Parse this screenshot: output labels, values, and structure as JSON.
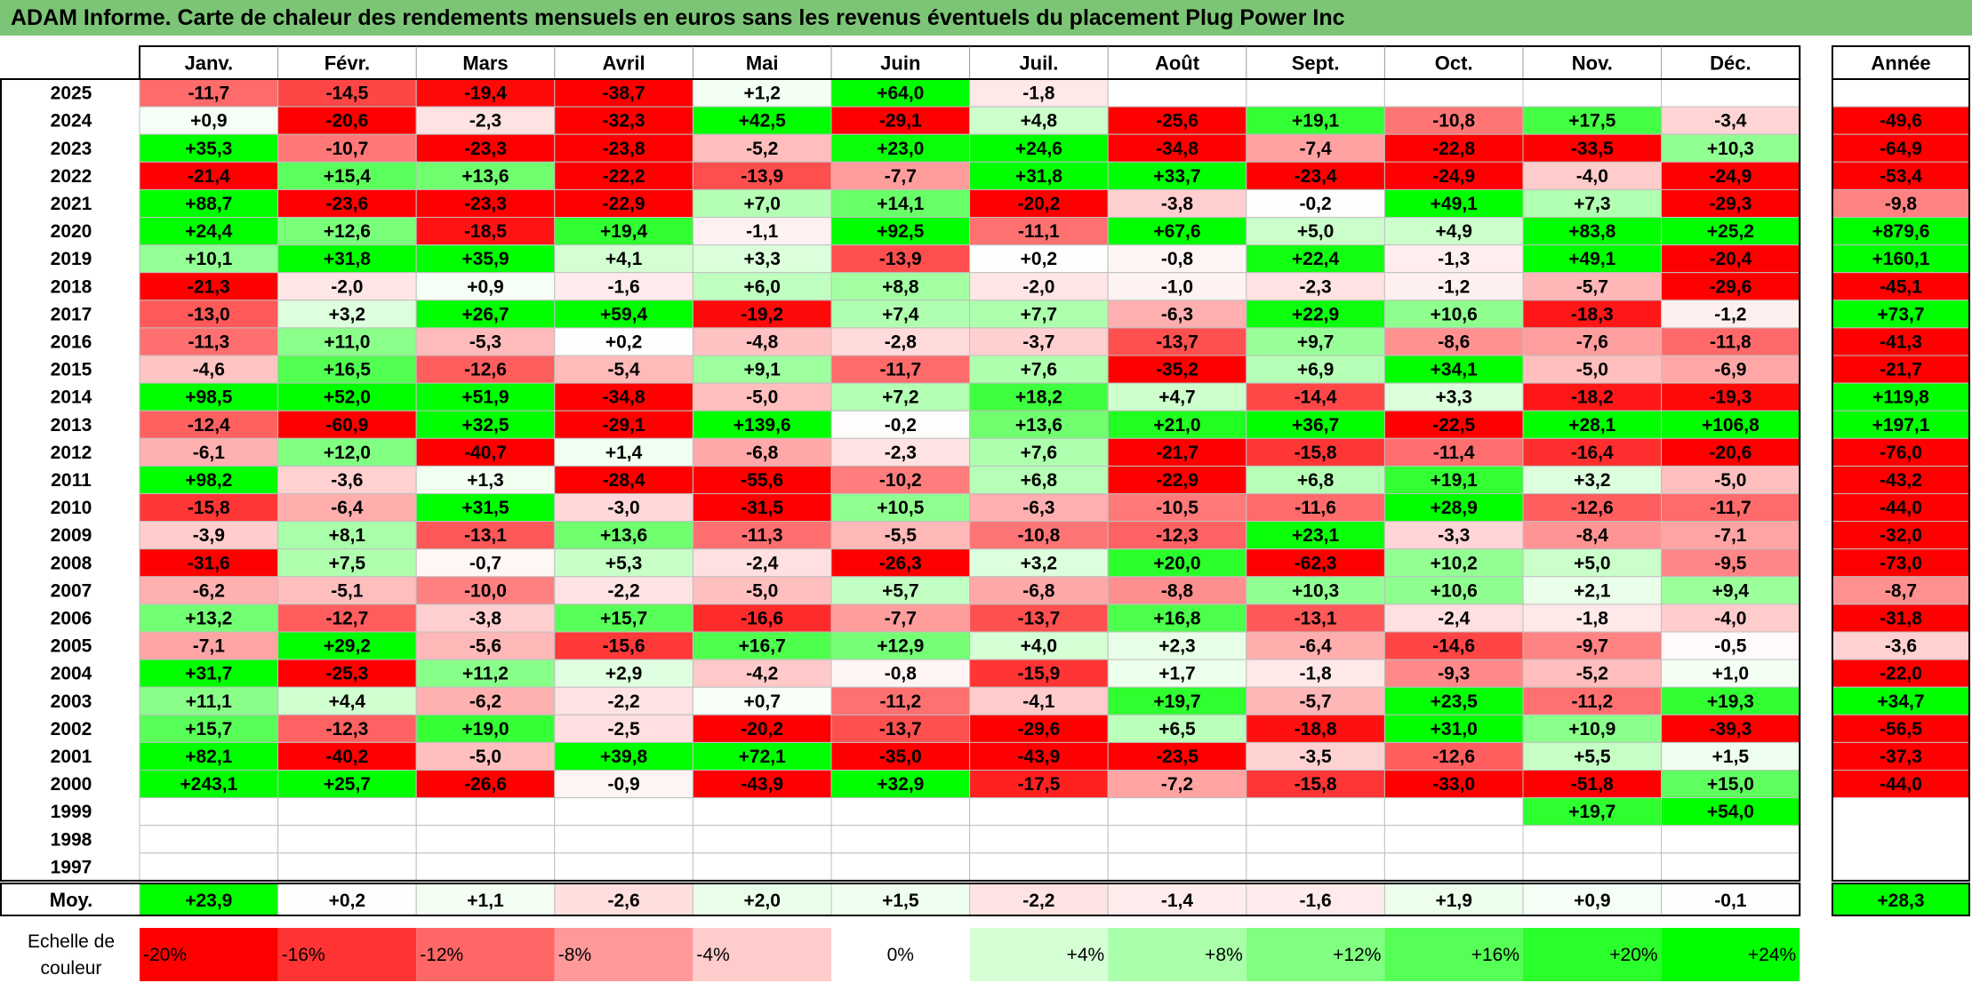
{
  "title": "ADAM Informe. Carte de chaleur des rendements mensuels en euros sans les revenus éventuels du placement Plug Power Inc",
  "colors": {
    "title_bg": "#7cc576",
    "negative_max": "#ff0000",
    "neutral": "#ffffff",
    "positive_max": "#00ff00"
  },
  "chart_data": {
    "type": "heatmap",
    "title": "ADAM Informe. Carte de chaleur des rendements mensuels en euros sans les revenus éventuels du placement Plug Power Inc",
    "months": [
      "Janv.",
      "Févr.",
      "Mars",
      "Avril",
      "Mai",
      "Juin",
      "Juil.",
      "Août",
      "Sept.",
      "Oct.",
      "Nov.",
      "Déc."
    ],
    "year_header": "Année",
    "years": [
      "2025",
      "2024",
      "2023",
      "2022",
      "2021",
      "2020",
      "2019",
      "2018",
      "2017",
      "2016",
      "2015",
      "2014",
      "2013",
      "2012",
      "2011",
      "2010",
      "2009",
      "2008",
      "2007",
      "2006",
      "2005",
      "2004",
      "2003",
      "2002",
      "2001",
      "2000",
      "1999",
      "1998",
      "1997"
    ],
    "values": [
      [
        "-11,7",
        "-14,5",
        "-19,4",
        "-38,7",
        "+1,2",
        "+64,0",
        "-1,8",
        "",
        "",
        "",
        "",
        ""
      ],
      [
        "+0,9",
        "-20,6",
        "-2,3",
        "-32,3",
        "+42,5",
        "-29,1",
        "+4,8",
        "-25,6",
        "+19,1",
        "-10,8",
        "+17,5",
        "-3,4"
      ],
      [
        "+35,3",
        "-10,7",
        "-23,3",
        "-23,8",
        "-5,2",
        "+23,0",
        "+24,6",
        "-34,8",
        "-7,4",
        "-22,8",
        "-33,5",
        "+10,3"
      ],
      [
        "-21,4",
        "+15,4",
        "+13,6",
        "-22,2",
        "-13,9",
        "-7,7",
        "+31,8",
        "+33,7",
        "-23,4",
        "-24,9",
        "-4,0",
        "-24,9"
      ],
      [
        "+88,7",
        "-23,6",
        "-23,3",
        "-22,9",
        "+7,0",
        "+14,1",
        "-20,2",
        "-3,8",
        "-0,2",
        "+49,1",
        "+7,3",
        "-29,3"
      ],
      [
        "+24,4",
        "+12,6",
        "-18,5",
        "+19,4",
        "-1,1",
        "+92,5",
        "-11,1",
        "+67,6",
        "+5,0",
        "+4,9",
        "+83,8",
        "+25,2"
      ],
      [
        "+10,1",
        "+31,8",
        "+35,9",
        "+4,1",
        "+3,3",
        "-13,9",
        "+0,2",
        "-0,8",
        "+22,4",
        "-1,3",
        "+49,1",
        "-20,4"
      ],
      [
        "-21,3",
        "-2,0",
        "+0,9",
        "-1,6",
        "+6,0",
        "+8,8",
        "-2,0",
        "-1,0",
        "-2,3",
        "-1,2",
        "-5,7",
        "-29,6"
      ],
      [
        "-13,0",
        "+3,2",
        "+26,7",
        "+59,4",
        "-19,2",
        "+7,4",
        "+7,7",
        "-6,3",
        "+22,9",
        "+10,6",
        "-18,3",
        "-1,2"
      ],
      [
        "-11,3",
        "+11,0",
        "-5,3",
        "+0,2",
        "-4,8",
        "-2,8",
        "-3,7",
        "-13,7",
        "+9,7",
        "-8,6",
        "-7,6",
        "-11,8"
      ],
      [
        "-4,6",
        "+16,5",
        "-12,6",
        "-5,4",
        "+9,1",
        "-11,7",
        "+7,6",
        "-35,2",
        "+6,9",
        "+34,1",
        "-5,0",
        "-6,9"
      ],
      [
        "+98,5",
        "+52,0",
        "+51,9",
        "-34,8",
        "-5,0",
        "+7,2",
        "+18,2",
        "+4,7",
        "-14,4",
        "+3,3",
        "-18,2",
        "-19,3"
      ],
      [
        "-12,4",
        "-60,9",
        "+32,5",
        "-29,1",
        "+139,6",
        "-0,2",
        "+13,6",
        "+21,0",
        "+36,7",
        "-22,5",
        "+28,1",
        "+106,8"
      ],
      [
        "-6,1",
        "+12,0",
        "-40,7",
        "+1,4",
        "-6,8",
        "-2,3",
        "+7,6",
        "-21,7",
        "-15,8",
        "-11,4",
        "-16,4",
        "-20,6"
      ],
      [
        "+98,2",
        "-3,6",
        "+1,3",
        "-28,4",
        "-55,6",
        "-10,2",
        "+6,8",
        "-22,9",
        "+6,8",
        "+19,1",
        "+3,2",
        "-5,0"
      ],
      [
        "-15,8",
        "-6,4",
        "+31,5",
        "-3,0",
        "-31,5",
        "+10,5",
        "-6,3",
        "-10,5",
        "-11,6",
        "+28,9",
        "-12,6",
        "-11,7"
      ],
      [
        "-3,9",
        "+8,1",
        "-13,1",
        "+13,6",
        "-11,3",
        "-5,5",
        "-10,8",
        "-12,3",
        "+23,1",
        "-3,3",
        "-8,4",
        "-7,1"
      ],
      [
        "-31,6",
        "+7,5",
        "-0,7",
        "+5,3",
        "-2,4",
        "-26,3",
        "+3,2",
        "+20,0",
        "-62,3",
        "+10,2",
        "+5,0",
        "-9,5"
      ],
      [
        "-6,2",
        "-5,1",
        "-10,0",
        "-2,2",
        "-5,0",
        "+5,7",
        "-6,8",
        "-8,8",
        "+10,3",
        "+10,6",
        "+2,1",
        "+9,4"
      ],
      [
        "+13,2",
        "-12,7",
        "-3,8",
        "+15,7",
        "-16,6",
        "-7,7",
        "-13,7",
        "+16,8",
        "-13,1",
        "-2,4",
        "-1,8",
        "-4,0"
      ],
      [
        "-7,1",
        "+29,2",
        "-5,6",
        "-15,6",
        "+16,7",
        "+12,9",
        "+4,0",
        "+2,3",
        "-6,4",
        "-14,6",
        "-9,7",
        "-0,5"
      ],
      [
        "+31,7",
        "-25,3",
        "+11,2",
        "+2,9",
        "-4,2",
        "-0,8",
        "-15,9",
        "+1,7",
        "-1,8",
        "-9,3",
        "-5,2",
        "+1,0"
      ],
      [
        "+11,1",
        "+4,4",
        "-6,2",
        "-2,2",
        "+0,7",
        "-11,2",
        "-4,1",
        "+19,7",
        "-5,7",
        "+23,5",
        "-11,2",
        "+19,3"
      ],
      [
        "+15,7",
        "-12,3",
        "+19,0",
        "-2,5",
        "-20,2",
        "-13,7",
        "-29,6",
        "+6,5",
        "-18,8",
        "+31,0",
        "+10,9",
        "-39,3"
      ],
      [
        "+82,1",
        "-40,2",
        "-5,0",
        "+39,8",
        "+72,1",
        "-35,0",
        "-43,9",
        "-23,5",
        "-3,5",
        "-12,6",
        "+5,5",
        "+1,5"
      ],
      [
        "+243,1",
        "+25,7",
        "-26,6",
        "-0,9",
        "-43,9",
        "+32,9",
        "-17,5",
        "-7,2",
        "-15,8",
        "-33,0",
        "-51,8",
        "+15,0"
      ],
      [
        "",
        "",
        "",
        "",
        "",
        "",
        "",
        "",
        "",
        "",
        "+19,7",
        "+54,0"
      ],
      [
        "",
        "",
        "",
        "",
        "",
        "",
        "",
        "",
        "",
        "",
        "",
        ""
      ],
      [
        "",
        "",
        "",
        "",
        "",
        "",
        "",
        "",
        "",
        "",
        "",
        ""
      ]
    ],
    "annual": [
      "",
      "-49,6",
      "-64,9",
      "-53,4",
      "-9,8",
      "+879,6",
      "+160,1",
      "-45,1",
      "+73,7",
      "-41,3",
      "-21,7",
      "+119,8",
      "+197,1",
      "-76,0",
      "-43,2",
      "-44,0",
      "-32,0",
      "-73,0",
      "-8,7",
      "-31,8",
      "-3,6",
      "-22,0",
      "+34,7",
      "-56,5",
      "-37,3",
      "-44,0",
      "",
      "",
      ""
    ],
    "average_label": "Moy.",
    "average": [
      "+23,9",
      "+0,2",
      "+1,1",
      "-2,6",
      "+2,0",
      "+1,5",
      "-2,2",
      "-1,4",
      "-1,6",
      "+1,9",
      "+0,9",
      "-0,1"
    ],
    "average_annual": "+28,3",
    "scale_label": [
      "Echelle de",
      "couleur"
    ],
    "scale_values": [
      -20,
      -16,
      -12,
      -8,
      -4,
      0,
      4,
      8,
      12,
      16,
      20,
      24
    ],
    "scale_labels": [
      "-20%",
      "-16%",
      "-12%",
      "-8%",
      "-4%",
      "0%",
      "+4%",
      "+8%",
      "+12%",
      "+16%",
      "+20%",
      "+24%"
    ],
    "color_scale": {
      "min": -20,
      "mid": 0,
      "max": 24,
      "unit": "%"
    }
  }
}
